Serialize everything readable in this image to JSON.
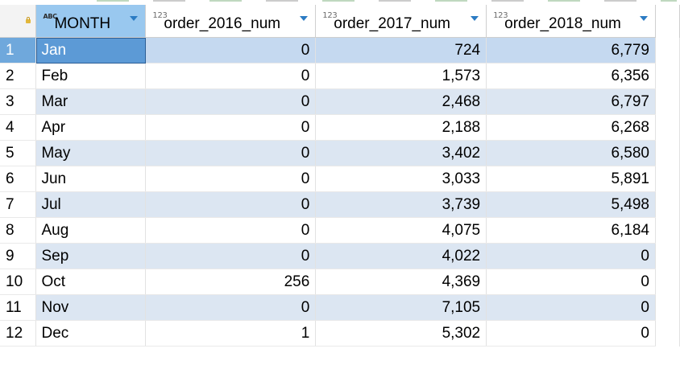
{
  "columns": [
    {
      "type_badge": "ABC",
      "name": "MONTH"
    },
    {
      "type_badge": "123",
      "name": "order_2016_num"
    },
    {
      "type_badge": "123",
      "name": "order_2017_num"
    },
    {
      "type_badge": "123",
      "name": "order_2018_num"
    }
  ],
  "rows": [
    {
      "num": "1",
      "month": "Jan",
      "o2016": "0",
      "o2017": "724",
      "o2018": "6,779"
    },
    {
      "num": "2",
      "month": "Feb",
      "o2016": "0",
      "o2017": "1,573",
      "o2018": "6,356"
    },
    {
      "num": "3",
      "month": "Mar",
      "o2016": "0",
      "o2017": "2,468",
      "o2018": "6,797"
    },
    {
      "num": "4",
      "month": "Apr",
      "o2016": "0",
      "o2017": "2,188",
      "o2018": "6,268"
    },
    {
      "num": "5",
      "month": "May",
      "o2016": "0",
      "o2017": "3,402",
      "o2018": "6,580"
    },
    {
      "num": "6",
      "month": "Jun",
      "o2016": "0",
      "o2017": "3,033",
      "o2018": "5,891"
    },
    {
      "num": "7",
      "month": "Jul",
      "o2016": "0",
      "o2017": "3,739",
      "o2018": "5,498"
    },
    {
      "num": "8",
      "month": "Aug",
      "o2016": "0",
      "o2017": "4,075",
      "o2018": "6,184"
    },
    {
      "num": "9",
      "month": "Sep",
      "o2016": "0",
      "o2017": "4,022",
      "o2018": "0"
    },
    {
      "num": "10",
      "month": "Oct",
      "o2016": "256",
      "o2017": "4,369",
      "o2018": "0"
    },
    {
      "num": "11",
      "month": "Nov",
      "o2016": "0",
      "o2017": "7,105",
      "o2018": "0"
    },
    {
      "num": "12",
      "month": "Dec",
      "o2016": "1",
      "o2017": "5,302",
      "o2018": "0"
    }
  ],
  "selected_row": 0,
  "colors": {
    "selected_cell": "#5c9ad6",
    "alt_row": "#dce6f2",
    "sort_icon": "#2b7bc3"
  }
}
